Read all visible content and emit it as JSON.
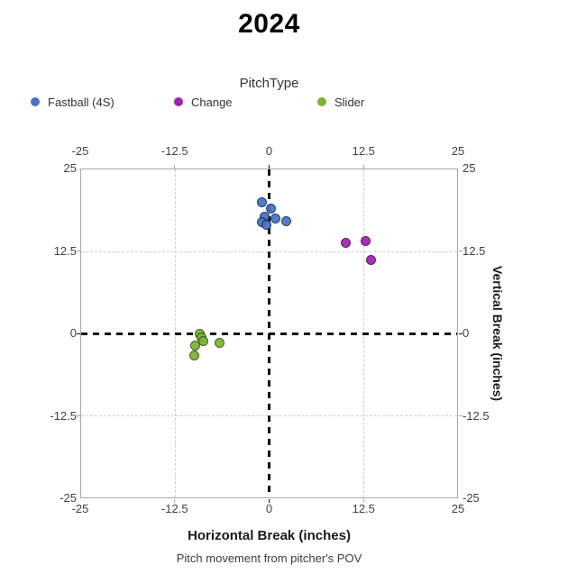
{
  "title": "2024",
  "legend": {
    "title": "PitchType",
    "items": [
      {
        "label": "Fastball (4S)",
        "color": "#4472c4"
      },
      {
        "label": "Change",
        "color": "#a020b0"
      },
      {
        "label": "Slider",
        "color": "#7ab42e"
      }
    ]
  },
  "chart_data": {
    "type": "scatter",
    "title": "2024",
    "legend_title": "PitchType",
    "xlabel": "Horizontal Break (inches)",
    "ylabel": "Vertical Break (inches)",
    "caption": "Pitch movement from pitcher's POV",
    "xlim": [
      -25,
      25
    ],
    "ylim": [
      -25,
      25
    ],
    "x_ticks": [
      -25,
      -12.5,
      0,
      12.5,
      25
    ],
    "y_ticks": [
      25,
      12.5,
      0,
      -12.5,
      -25
    ],
    "grid": "light dashed gridlines at ±12.5; bold black dashed lines at x=0 and y=0; axis labels mirrored on all four sides",
    "legend_position": "top",
    "series": [
      {
        "name": "Fastball (4S)",
        "fill": "#4472c4",
        "edge": "#142c55",
        "points": [
          [
            -0.9,
            20.0
          ],
          [
            0.2,
            19.0
          ],
          [
            -0.6,
            17.8
          ],
          [
            -1.0,
            16.9
          ],
          [
            -0.4,
            16.6
          ],
          [
            0.8,
            17.5
          ],
          [
            2.3,
            17.1
          ]
        ]
      },
      {
        "name": "Change",
        "fill": "#a020b0",
        "edge": "#530a5c",
        "points": [
          [
            10.2,
            13.8
          ],
          [
            12.8,
            14.1
          ],
          [
            13.5,
            11.2
          ]
        ]
      },
      {
        "name": "Slider",
        "fill": "#7ab42e",
        "edge": "#33550f",
        "points": [
          [
            -9.2,
            -0.1
          ],
          [
            -9.0,
            -0.6
          ],
          [
            -8.7,
            -1.2
          ],
          [
            -9.8,
            -1.9
          ],
          [
            -6.6,
            -1.5
          ],
          [
            -10.0,
            -3.3
          ]
        ]
      }
    ]
  }
}
